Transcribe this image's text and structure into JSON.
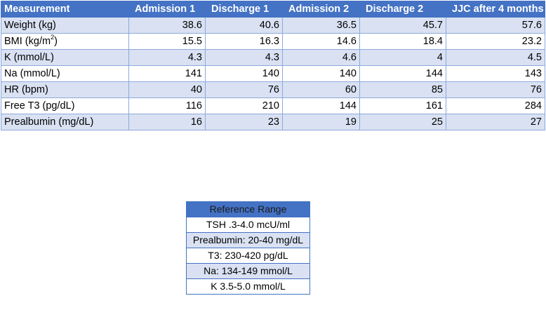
{
  "measurements": {
    "headers": [
      "Measurement",
      "Admission 1",
      "Discharge 1",
      "Admission 2",
      "Discharge 2",
      "JJC after 4 months"
    ],
    "rows": [
      {
        "label": "Weight (kg)",
        "label_sup": "",
        "label_after": "",
        "values": [
          "38.6",
          "40.6",
          "36.5",
          "45.7",
          "57.6"
        ]
      },
      {
        "label": "BMI (kg/m",
        "label_sup": "2",
        "label_after": ")",
        "values": [
          "15.5",
          "16.3",
          "14.6",
          "18.4",
          "23.2"
        ]
      },
      {
        "label": "K (mmol/L)",
        "label_sup": "",
        "label_after": "",
        "values": [
          "4.3",
          "4.3",
          "4.6",
          "4",
          "4.5"
        ]
      },
      {
        "label": "Na (mmol/L)",
        "label_sup": "",
        "label_after": "",
        "values": [
          "141",
          "140",
          "140",
          "144",
          "143"
        ]
      },
      {
        "label": "HR (bpm)",
        "label_sup": "",
        "label_after": "",
        "values": [
          "40",
          "76",
          "60",
          "85",
          "76"
        ]
      },
      {
        "label": "Free T3 (pg/dL)",
        "label_sup": "",
        "label_after": "",
        "values": [
          "116",
          "210",
          "144",
          "161",
          "284"
        ]
      },
      {
        "label": "Prealbumin (mg/dL)",
        "label_sup": "",
        "label_after": "",
        "values": [
          "16",
          "23",
          "19",
          "25",
          "27"
        ]
      }
    ]
  },
  "reference": {
    "header": "Reference Range",
    "rows": [
      "TSH .3-4.0 mcU/ml",
      "Prealbumin: 20-40 mg/dL",
      "T3: 230-420 pg/dL",
      "Na: 134-149 mmol/L",
      "K 3.5-5.0 mmol/L"
    ]
  },
  "colors": {
    "header_fill": "#4472c4",
    "band_fill": "#d9e1f2",
    "border": "#8ea9db"
  }
}
